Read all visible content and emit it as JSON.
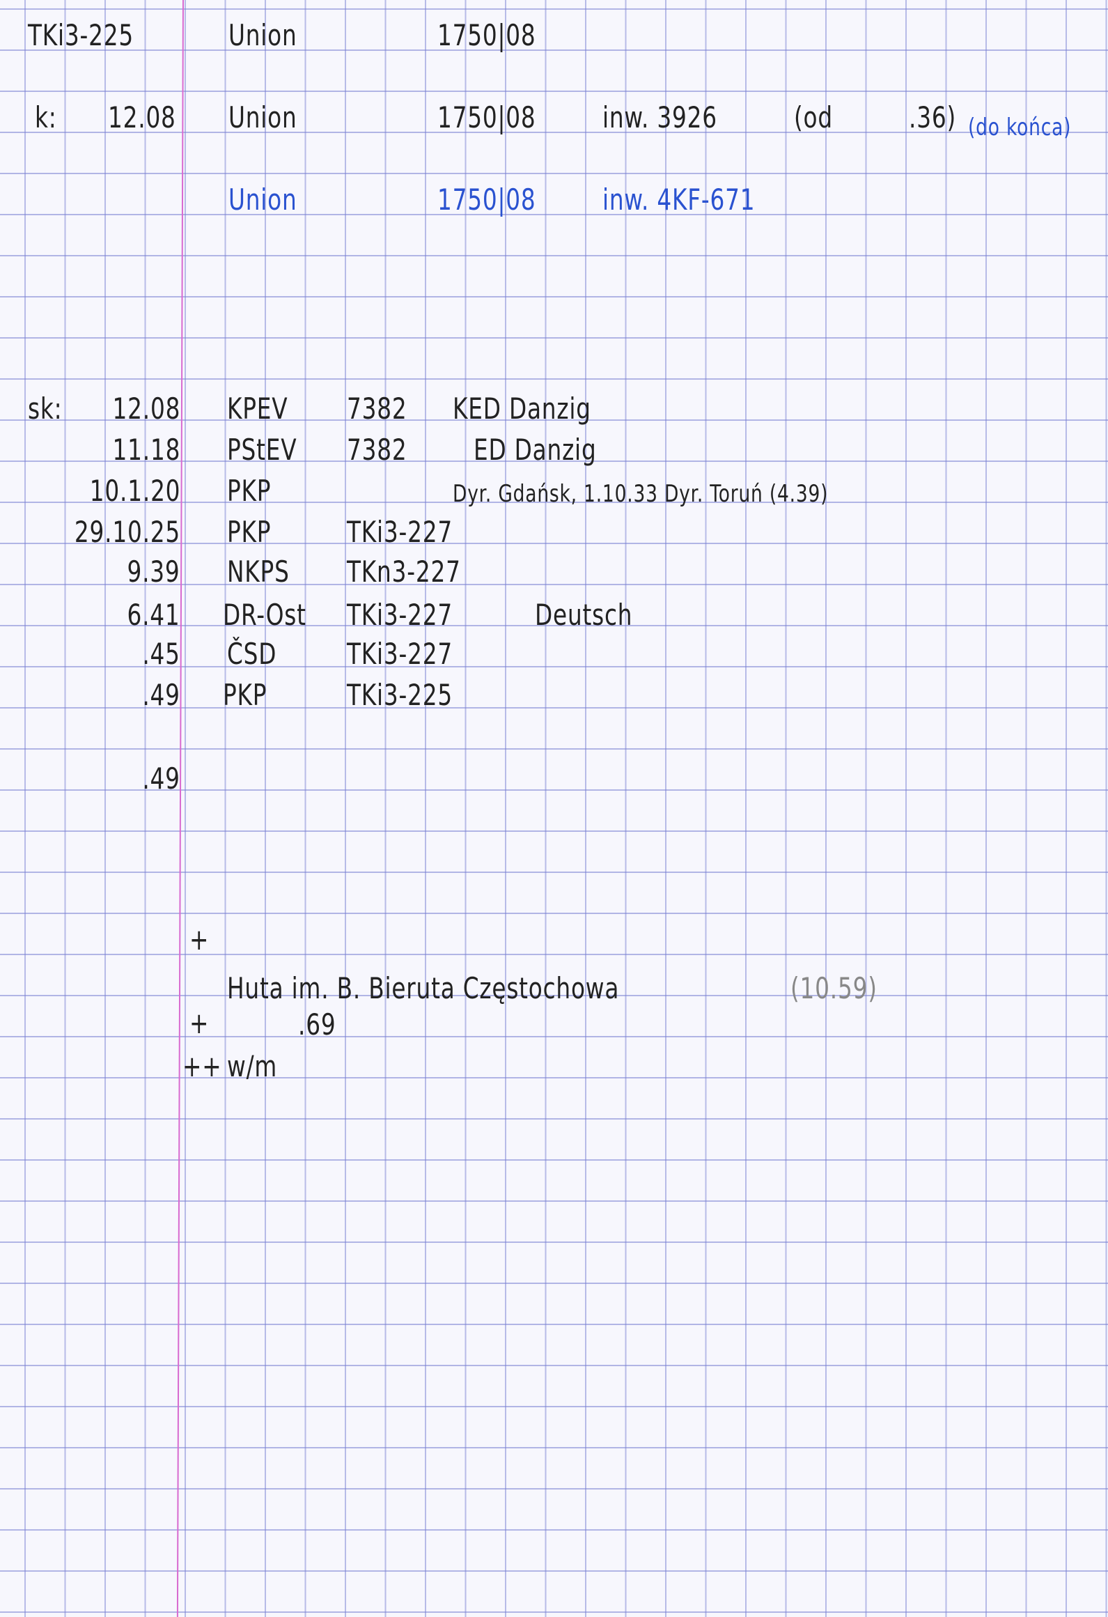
{
  "header": {
    "designation": "TKi3-225",
    "builder": "Union",
    "works_number": "1750|08"
  },
  "k_line": {
    "label": "k:",
    "date": "12.08",
    "builder": "Union",
    "works_number": "1750|08",
    "inventory": "inw. 3926",
    "from": "(od",
    "from_year": ".36)",
    "note": "(do końca)"
  },
  "blue_line": {
    "builder": "Union",
    "works_number": "1750|08",
    "inventory": "inw. 4KF-671"
  },
  "service": {
    "label": "sk:",
    "rows": [
      {
        "date": "12.08",
        "operator": "KPEV",
        "number": "7382",
        "note": "KED Danzig"
      },
      {
        "date": "11.18",
        "operator": "PStEV",
        "number": "7382",
        "note": "ED Danzig"
      },
      {
        "date": "10.1.20",
        "operator": "PKP",
        "number": "",
        "note": "Dyr. Gdańsk, 1.10.33 Dyr. Toruń (4.39)"
      },
      {
        "date": "29.10.25",
        "operator": "PKP",
        "number": "TKi3-227",
        "note": ""
      },
      {
        "date": "9.39",
        "operator": "NKPS",
        "number": "TKn3-227",
        "note": ""
      },
      {
        "date": "6.41",
        "operator": "DR-Ost",
        "number": "TKi3-227",
        "note": "Deutsch"
      },
      {
        "date": ".45",
        "operator": "ČSD",
        "number": "TKi3-227",
        "note": ""
      },
      {
        "date": ".49",
        "operator": "PKP",
        "number": "TKi3-225",
        "note": ""
      }
    ],
    "extra_date": ".49"
  },
  "footer": {
    "cross1": "+",
    "industrial": "Huta im. B. Bieruta Częstochowa",
    "industrial_date": "(10.59)",
    "cross2": "+",
    "withdrawn": ".69",
    "scrapped_mark": "++",
    "scrapped_text": "w/m"
  },
  "colors": {
    "ink": "#222222",
    "blue_ink": "#2a52d0",
    "pencil": "#888888",
    "grid": "#7880d2",
    "margin_line": "#d86ad0"
  }
}
